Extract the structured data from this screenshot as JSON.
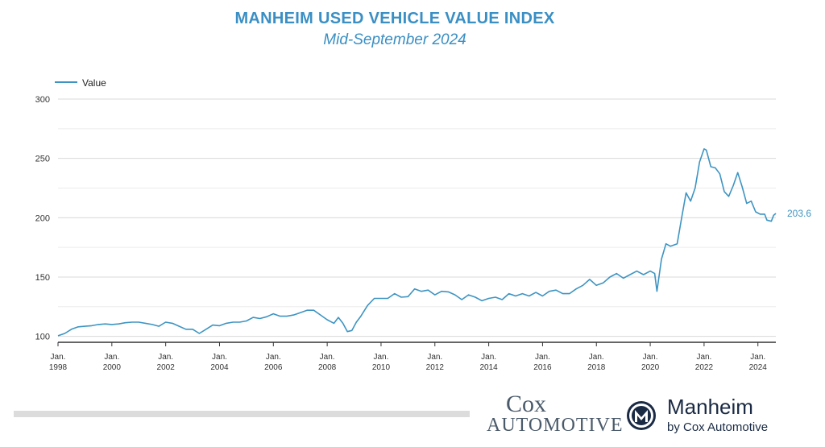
{
  "title": "MANHEIM USED VEHICLE VALUE INDEX",
  "subtitle": "Mid-September 2024",
  "colors": {
    "title": "#3a8fc4",
    "line": "#3d94c2",
    "grid": "#d8d8d8",
    "axis": "#333333"
  },
  "end_label": "203.6",
  "logos": {
    "cox_line1": "Cox",
    "cox_line2": "AUTOMOTIVE",
    "manheim_name": "Manheim",
    "manheim_tagline": "by Cox Automotive"
  },
  "chart_data": {
    "type": "line",
    "title": "MANHEIM USED VEHICLE VALUE INDEX",
    "subtitle": "Mid-September 2024",
    "xlabel": "",
    "ylabel": "",
    "ylim": [
      95,
      300
    ],
    "yticks": [
      100,
      150,
      200,
      250,
      300
    ],
    "grid": true,
    "legend": "top-left",
    "xticks": [
      {
        "month": "1998-01",
        "line1": "Jan.",
        "line2": "1998"
      },
      {
        "month": "2000-01",
        "line1": "Jan.",
        "line2": "2000"
      },
      {
        "month": "2002-01",
        "line1": "Jan.",
        "line2": "2002"
      },
      {
        "month": "2004-01",
        "line1": "Jan.",
        "line2": "2004"
      },
      {
        "month": "2006-01",
        "line1": "Jan.",
        "line2": "2006"
      },
      {
        "month": "2008-01",
        "line1": "Jan.",
        "line2": "2008"
      },
      {
        "month": "2010-01",
        "line1": "Jan.",
        "line2": "2010"
      },
      {
        "month": "2012-01",
        "line1": "Jan.",
        "line2": "2012"
      },
      {
        "month": "2014-01",
        "line1": "Jan.",
        "line2": "2014"
      },
      {
        "month": "2016-01",
        "line1": "Jan.",
        "line2": "2016"
      },
      {
        "month": "2018-01",
        "line1": "Jan.",
        "line2": "2018"
      },
      {
        "month": "2020-01",
        "line1": "Jan.",
        "line2": "2020"
      },
      {
        "month": "2022-01",
        "line1": "Jan.",
        "line2": "2022"
      },
      {
        "month": "2024-01",
        "line1": "Jan.",
        "line2": "2024"
      }
    ],
    "series": [
      {
        "name": "Value",
        "points": [
          [
            "1998-01",
            100.5
          ],
          [
            "1998-04",
            102.5
          ],
          [
            "1998-07",
            106
          ],
          [
            "1998-10",
            108
          ],
          [
            "1999-01",
            108.5
          ],
          [
            "1999-04",
            109
          ],
          [
            "1999-07",
            110
          ],
          [
            "1999-10",
            110.5
          ],
          [
            "2000-01",
            110
          ],
          [
            "2000-04",
            110.5
          ],
          [
            "2000-07",
            111.5
          ],
          [
            "2000-10",
            112
          ],
          [
            "2001-01",
            112
          ],
          [
            "2001-04",
            111
          ],
          [
            "2001-07",
            110
          ],
          [
            "2001-10",
            108.5
          ],
          [
            "2002-01",
            112
          ],
          [
            "2002-04",
            111
          ],
          [
            "2002-07",
            108.5
          ],
          [
            "2002-10",
            106
          ],
          [
            "2003-01",
            106
          ],
          [
            "2003-04",
            102.5
          ],
          [
            "2003-07",
            106
          ],
          [
            "2003-10",
            109.5
          ],
          [
            "2004-01",
            109
          ],
          [
            "2004-04",
            111
          ],
          [
            "2004-07",
            112
          ],
          [
            "2004-10",
            112
          ],
          [
            "2005-01",
            113
          ],
          [
            "2005-04",
            116
          ],
          [
            "2005-07",
            115
          ],
          [
            "2005-10",
            116.5
          ],
          [
            "2006-01",
            119
          ],
          [
            "2006-04",
            117
          ],
          [
            "2006-07",
            117
          ],
          [
            "2006-10",
            118
          ],
          [
            "2007-01",
            120
          ],
          [
            "2007-04",
            122
          ],
          [
            "2007-07",
            122
          ],
          [
            "2007-10",
            118
          ],
          [
            "2008-01",
            114
          ],
          [
            "2008-04",
            111
          ],
          [
            "2008-06",
            116
          ],
          [
            "2008-08",
            111
          ],
          [
            "2008-10",
            104
          ],
          [
            "2008-12",
            105
          ],
          [
            "2009-02",
            112
          ],
          [
            "2009-04",
            117
          ],
          [
            "2009-07",
            126
          ],
          [
            "2009-10",
            132
          ],
          [
            "2010-01",
            132
          ],
          [
            "2010-04",
            132
          ],
          [
            "2010-07",
            136
          ],
          [
            "2010-10",
            133
          ],
          [
            "2011-01",
            133.5
          ],
          [
            "2011-04",
            140
          ],
          [
            "2011-07",
            138
          ],
          [
            "2011-10",
            139
          ],
          [
            "2012-01",
            135
          ],
          [
            "2012-04",
            138
          ],
          [
            "2012-07",
            137.5
          ],
          [
            "2012-10",
            135
          ],
          [
            "2013-01",
            131
          ],
          [
            "2013-04",
            135
          ],
          [
            "2013-07",
            133
          ],
          [
            "2013-10",
            130
          ],
          [
            "2014-01",
            132
          ],
          [
            "2014-04",
            133
          ],
          [
            "2014-07",
            131
          ],
          [
            "2014-10",
            136
          ],
          [
            "2015-01",
            134
          ],
          [
            "2015-04",
            136
          ],
          [
            "2015-07",
            134
          ],
          [
            "2015-10",
            137
          ],
          [
            "2016-01",
            134
          ],
          [
            "2016-04",
            138
          ],
          [
            "2016-07",
            139
          ],
          [
            "2016-10",
            136
          ],
          [
            "2017-01",
            136
          ],
          [
            "2017-04",
            140
          ],
          [
            "2017-07",
            143
          ],
          [
            "2017-10",
            148
          ],
          [
            "2018-01",
            143
          ],
          [
            "2018-04",
            145
          ],
          [
            "2018-07",
            150
          ],
          [
            "2018-10",
            153
          ],
          [
            "2019-01",
            149
          ],
          [
            "2019-04",
            152
          ],
          [
            "2019-07",
            155
          ],
          [
            "2019-10",
            152
          ],
          [
            "2020-01",
            155
          ],
          [
            "2020-03",
            153
          ],
          [
            "2020-04",
            138
          ],
          [
            "2020-06",
            165
          ],
          [
            "2020-08",
            178
          ],
          [
            "2020-10",
            176
          ],
          [
            "2021-01",
            178
          ],
          [
            "2021-03",
            200
          ],
          [
            "2021-05",
            221
          ],
          [
            "2021-07",
            214
          ],
          [
            "2021-09",
            225
          ],
          [
            "2021-11",
            247
          ],
          [
            "2022-01",
            258
          ],
          [
            "2022-02",
            257
          ],
          [
            "2022-04",
            243
          ],
          [
            "2022-06",
            242
          ],
          [
            "2022-08",
            237
          ],
          [
            "2022-10",
            222
          ],
          [
            "2022-12",
            218
          ],
          [
            "2023-02",
            227
          ],
          [
            "2023-04",
            238
          ],
          [
            "2023-06",
            226
          ],
          [
            "2023-08",
            212
          ],
          [
            "2023-10",
            214
          ],
          [
            "2023-12",
            205
          ],
          [
            "2024-02",
            203
          ],
          [
            "2024-04",
            203
          ],
          [
            "2024-05",
            198
          ],
          [
            "2024-07",
            197
          ],
          [
            "2024-08",
            202
          ],
          [
            "2024-09",
            203.6
          ]
        ]
      }
    ]
  }
}
